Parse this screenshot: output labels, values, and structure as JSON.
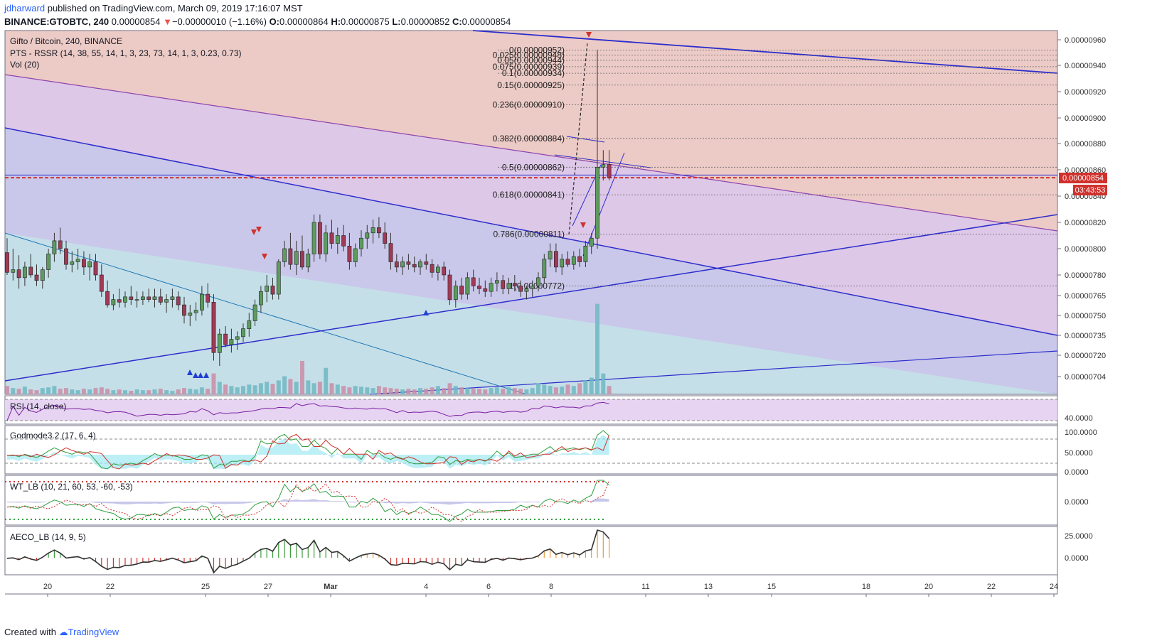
{
  "header": {
    "user": "jdharward",
    "published_text": "published on TradingView.com, March 09, 2019 17:16:07 MST",
    "symbol_line": "BINANCE:GTOBTC, 240",
    "last": "0.00000854",
    "arrow": "▼",
    "change": "−0.00000010 (−1.16%)",
    "o_label": "O:",
    "o": "0.00000864",
    "h_label": "H:",
    "h": "0.00000875",
    "l_label": "L:",
    "l": "0.00000852",
    "c_label": "C:",
    "c": "0.00000854"
  },
  "legend": {
    "title": "Gifto / Bitcoin, 240, BINANCE",
    "pts": "PTS - RSSR (14, 38, 55, 14, 1, 3, 23, 73, 14, 1, 3, 0.23, 0.73)",
    "vol": "Vol (20)"
  },
  "panes": {
    "rsi_label": "RSI (14, close)",
    "godmode_label": "Godmode3.2 (17, 6, 4)",
    "wt_label": "WT_LB (10, 21, 60, 53, -60, -53)",
    "aeco_label": "AECO_LB (14, 9, 5)",
    "rsi_ticks": [
      "40.0000"
    ],
    "godmode_ticks": [
      "100.0000",
      "50.0000",
      "0.0000"
    ],
    "wt_ticks": [
      "0.0000"
    ],
    "aeco_ticks": [
      "25.0000",
      "0.0000"
    ]
  },
  "price_badge": {
    "price": "0.00000854",
    "countdown": "03:43:53"
  },
  "footer": {
    "created_with": "Created with",
    "brand": "TradingView"
  },
  "colors": {
    "up": "#26a69a",
    "down": "#ef5350",
    "candle_up_body": "#5d9b5d",
    "candle_down_body": "#a03a55",
    "trendline": "#2d2dcc",
    "fib": "#555555",
    "price_line": "#d0312d"
  },
  "chart_data": {
    "type": "candlestick",
    "symbol": "Gifto / Bitcoin",
    "interval": "240",
    "exchange": "BINANCE",
    "y_ticks": [
      "0.00000960",
      "0.00000940",
      "0.00000920",
      "0.00000900",
      "0.00000880",
      "0.00000860",
      "0.00000840",
      "0.00000820",
      "0.00000800",
      "0.00000780",
      "0.00000765",
      "0.00000750",
      "0.00000735",
      "0.00000720",
      "0.00000704"
    ],
    "x_ticks": [
      "20",
      "22",
      "25",
      "27",
      "Mar",
      "4",
      "6",
      "8",
      "11",
      "13",
      "15",
      "18",
      "20",
      "22",
      "24"
    ],
    "fib_levels": [
      {
        "label": "0(0.00000952)",
        "value": 9.52e-06
      },
      {
        "label": "0.025(0.00000948)",
        "value": 9.48e-06
      },
      {
        "label": "0.05(0.00000944)",
        "value": 9.44e-06
      },
      {
        "label": "0.075(0.00000939)",
        "value": 9.39e-06
      },
      {
        "label": "0.1(0.00000934)",
        "value": 9.34e-06
      },
      {
        "label": "0.15(0.00000925)",
        "value": 9.25e-06
      },
      {
        "label": "0.236(0.00000910)",
        "value": 9.1e-06
      },
      {
        "label": "0.382(0.00000884)",
        "value": 8.84e-06
      },
      {
        "label": "0.5(0.00000862)",
        "value": 8.62e-06
      },
      {
        "label": "0.618(0.00000841)",
        "value": 8.41e-06
      },
      {
        "label": "0.786(0.00000811)",
        "value": 8.11e-06
      },
      {
        "label": "1(0.00000772)",
        "value": 7.72e-06
      }
    ],
    "last_price": 8.54e-06,
    "candles": [
      [
        797,
        808,
        780,
        782
      ],
      [
        782,
        800,
        776,
        784
      ],
      [
        784,
        795,
        770,
        778
      ],
      [
        778,
        790,
        772,
        786
      ],
      [
        786,
        796,
        778,
        780
      ],
      [
        780,
        788,
        772,
        776
      ],
      [
        776,
        786,
        770,
        784
      ],
      [
        784,
        800,
        778,
        796
      ],
      [
        796,
        812,
        790,
        806
      ],
      [
        806,
        816,
        796,
        800
      ],
      [
        800,
        806,
        784,
        788
      ],
      [
        788,
        798,
        782,
        790
      ],
      [
        790,
        800,
        784,
        792
      ],
      [
        792,
        798,
        780,
        786
      ],
      [
        786,
        796,
        776,
        790
      ],
      [
        790,
        796,
        776,
        780
      ],
      [
        780,
        788,
        764,
        768
      ],
      [
        768,
        776,
        756,
        758
      ],
      [
        758,
        766,
        754,
        762
      ],
      [
        762,
        770,
        756,
        760
      ],
      [
        760,
        768,
        756,
        764
      ],
      [
        764,
        772,
        758,
        762
      ],
      [
        762,
        768,
        756,
        762
      ],
      [
        762,
        768,
        758,
        764
      ],
      [
        764,
        770,
        760,
        762
      ],
      [
        762,
        770,
        756,
        764
      ],
      [
        764,
        770,
        758,
        760
      ],
      [
        760,
        766,
        752,
        762
      ],
      [
        762,
        770,
        756,
        764
      ],
      [
        764,
        768,
        754,
        758
      ],
      [
        758,
        764,
        744,
        750
      ],
      [
        750,
        758,
        742,
        752
      ],
      [
        752,
        760,
        746,
        754
      ],
      [
        754,
        772,
        750,
        766
      ],
      [
        766,
        774,
        756,
        760
      ],
      [
        760,
        766,
        716,
        722
      ],
      [
        722,
        740,
        712,
        736
      ],
      [
        736,
        742,
        726,
        728
      ],
      [
        728,
        740,
        722,
        732
      ],
      [
        732,
        738,
        724,
        734
      ],
      [
        734,
        744,
        730,
        740
      ],
      [
        740,
        752,
        734,
        746
      ],
      [
        746,
        762,
        742,
        758
      ],
      [
        758,
        772,
        752,
        768
      ],
      [
        768,
        780,
        760,
        772
      ],
      [
        772,
        778,
        762,
        766
      ],
      [
        766,
        792,
        762,
        790
      ],
      [
        790,
        806,
        786,
        800
      ],
      [
        800,
        812,
        784,
        788
      ],
      [
        788,
        806,
        780,
        798
      ],
      [
        798,
        810,
        784,
        786
      ],
      [
        786,
        800,
        782,
        796
      ],
      [
        796,
        826,
        790,
        820
      ],
      [
        820,
        826,
        792,
        796
      ],
      [
        796,
        818,
        790,
        812
      ],
      [
        812,
        822,
        800,
        804
      ],
      [
        804,
        816,
        796,
        810
      ],
      [
        810,
        818,
        798,
        802
      ],
      [
        802,
        812,
        784,
        790
      ],
      [
        790,
        804,
        786,
        800
      ],
      [
        800,
        814,
        794,
        808
      ],
      [
        808,
        818,
        800,
        812
      ],
      [
        812,
        822,
        804,
        816
      ],
      [
        816,
        824,
        808,
        812
      ],
      [
        812,
        820,
        800,
        804
      ],
      [
        804,
        812,
        784,
        790
      ],
      [
        790,
        796,
        782,
        786
      ],
      [
        786,
        794,
        780,
        790
      ],
      [
        790,
        796,
        784,
        788
      ],
      [
        788,
        794,
        782,
        786
      ],
      [
        786,
        792,
        780,
        790
      ],
      [
        790,
        796,
        784,
        788
      ],
      [
        788,
        792,
        778,
        782
      ],
      [
        782,
        788,
        776,
        786
      ],
      [
        786,
        790,
        776,
        780
      ],
      [
        780,
        784,
        758,
        762
      ],
      [
        762,
        776,
        756,
        772
      ],
      [
        772,
        778,
        762,
        766
      ],
      [
        766,
        782,
        762,
        778
      ],
      [
        778,
        784,
        768,
        772
      ],
      [
        772,
        778,
        766,
        770
      ],
      [
        770,
        776,
        764,
        768
      ],
      [
        768,
        778,
        764,
        774
      ],
      [
        774,
        782,
        768,
        776
      ],
      [
        776,
        780,
        766,
        770
      ],
      [
        770,
        778,
        766,
        774
      ],
      [
        774,
        780,
        768,
        772
      ],
      [
        772,
        776,
        764,
        768
      ],
      [
        768,
        772,
        762,
        770
      ],
      [
        770,
        776,
        764,
        772
      ],
      [
        772,
        782,
        768,
        778
      ],
      [
        778,
        796,
        774,
        792
      ],
      [
        792,
        804,
        786,
        798
      ],
      [
        798,
        804,
        782,
        786
      ],
      [
        786,
        796,
        780,
        792
      ],
      [
        792,
        798,
        786,
        788
      ],
      [
        788,
        798,
        784,
        794
      ],
      [
        794,
        800,
        786,
        790
      ],
      [
        790,
        806,
        786,
        802
      ],
      [
        802,
        812,
        796,
        808
      ],
      [
        808,
        952,
        800,
        862
      ],
      [
        862,
        875,
        852,
        864
      ],
      [
        864,
        875,
        852,
        854
      ]
    ],
    "volume": [
      12,
      9,
      8,
      11,
      7,
      6,
      9,
      10,
      12,
      8,
      9,
      7,
      6,
      8,
      7,
      9,
      10,
      8,
      6,
      7,
      6,
      5,
      7,
      6,
      6,
      7,
      8,
      6,
      5,
      7,
      9,
      8,
      7,
      10,
      8,
      30,
      18,
      14,
      12,
      10,
      12,
      14,
      13,
      16,
      18,
      15,
      20,
      26,
      22,
      18,
      48,
      20,
      16,
      18,
      38,
      16,
      14,
      12,
      10,
      12,
      11,
      10,
      9,
      12,
      10,
      9,
      8,
      7,
      8,
      7,
      9,
      8,
      10,
      12,
      9,
      16,
      12,
      10,
      9,
      8,
      8,
      7,
      9,
      10,
      8,
      10,
      9,
      8,
      7,
      9,
      16,
      14,
      12,
      10,
      11,
      14,
      12,
      16,
      20,
      24,
      130,
      30,
      12
    ]
  }
}
